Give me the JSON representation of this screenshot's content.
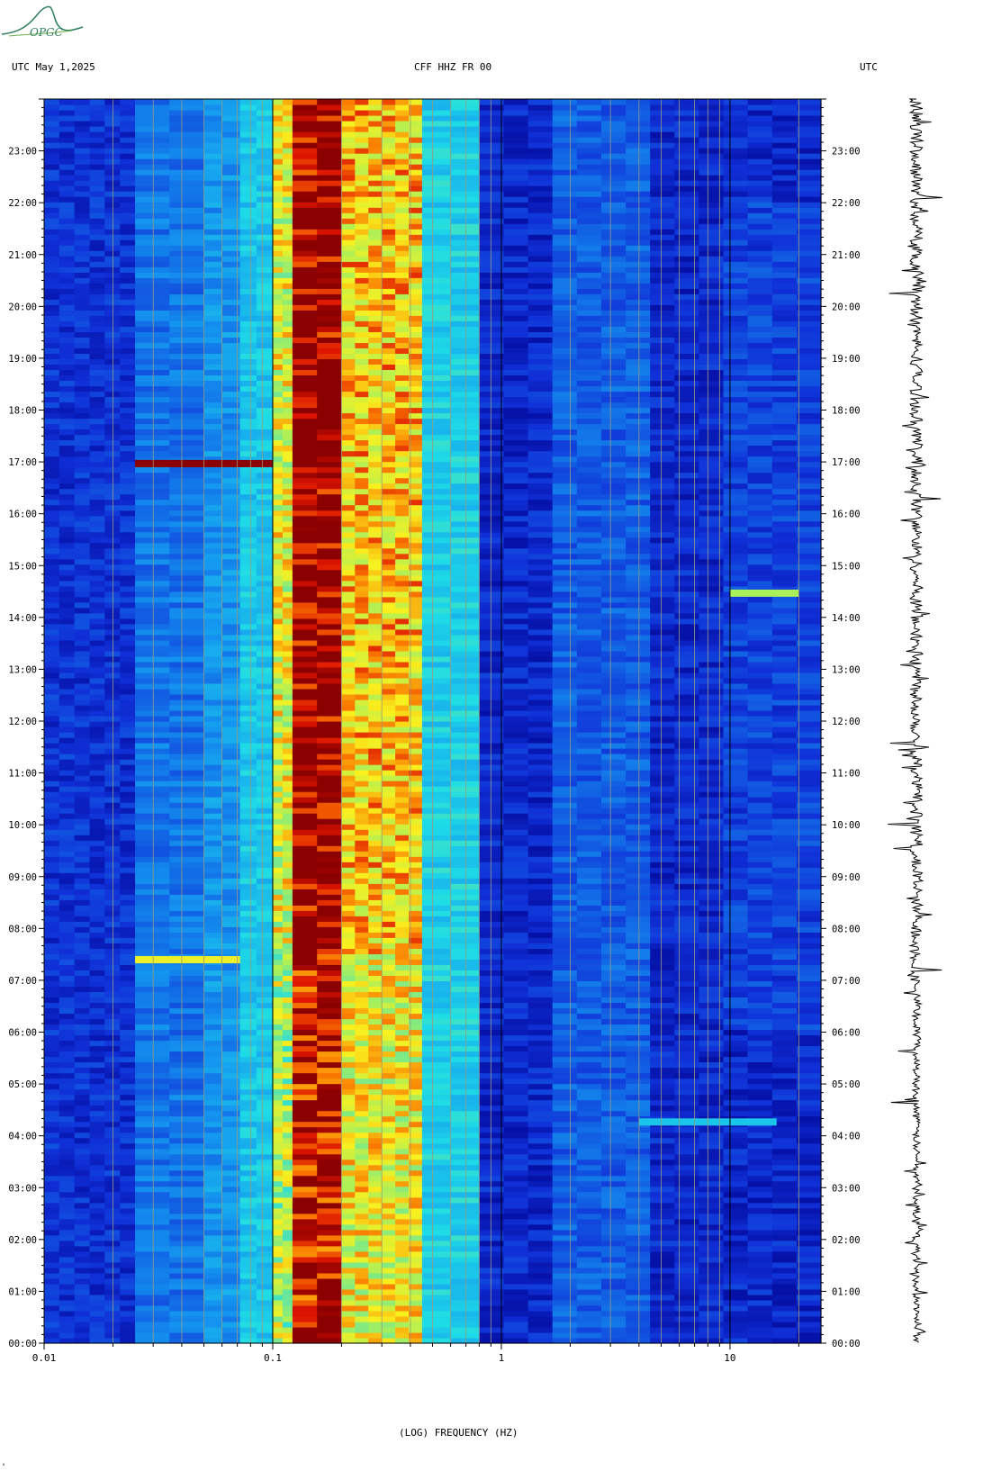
{
  "header": {
    "left": "UTC  May 1,2025",
    "center": "CFF HHZ FR 00",
    "right": "UTC"
  },
  "logo": {
    "text": "OPGC",
    "color": "#2e7d5b"
  },
  "colors": {
    "background_low": "#1030d8",
    "mid_cyan": "#20c8f0",
    "yellow": "#f8f020",
    "dark_red": "#8b0000"
  },
  "chart_data": [
    {
      "type": "heatmap",
      "title": "",
      "xlabel": "(LOG) FREQUENCY (HZ)",
      "ylabel": "",
      "x_scale": "log",
      "xlim": [
        0.01,
        25
      ],
      "x_ticks": [
        {
          "value": 0.01,
          "label": "0.01"
        },
        {
          "value": 0.1,
          "label": "0.1"
        },
        {
          "value": 1,
          "label": "1"
        },
        {
          "value": 10,
          "label": "10"
        }
      ],
      "ylim": [
        0,
        24
      ],
      "y_ticks": [
        {
          "value": 0,
          "label": "00:00"
        },
        {
          "value": 1,
          "label": "01:00"
        },
        {
          "value": 2,
          "label": "02:00"
        },
        {
          "value": 3,
          "label": "03:00"
        },
        {
          "value": 4,
          "label": "04:00"
        },
        {
          "value": 5,
          "label": "05:00"
        },
        {
          "value": 6,
          "label": "06:00"
        },
        {
          "value": 7,
          "label": "07:00"
        },
        {
          "value": 8,
          "label": "08:00"
        },
        {
          "value": 9,
          "label": "09:00"
        },
        {
          "value": 10,
          "label": "10:00"
        },
        {
          "value": 11,
          "label": "11:00"
        },
        {
          "value": 12,
          "label": "12:00"
        },
        {
          "value": 13,
          "label": "13:00"
        },
        {
          "value": 14,
          "label": "14:00"
        },
        {
          "value": 15,
          "label": "15:00"
        },
        {
          "value": 16,
          "label": "16:00"
        },
        {
          "value": 17,
          "label": "17:00"
        },
        {
          "value": 18,
          "label": "18:00"
        },
        {
          "value": 19,
          "label": "19:00"
        },
        {
          "value": 20,
          "label": "20:00"
        },
        {
          "value": 21,
          "label": "21:00"
        },
        {
          "value": 22,
          "label": "22:00"
        },
        {
          "value": 23,
          "label": "23:00"
        }
      ],
      "freq_bands": [
        {
          "f_min": 0.01,
          "f_max": 0.025,
          "level": 0.12
        },
        {
          "f_min": 0.025,
          "f_max": 0.05,
          "level": 0.24
        },
        {
          "f_min": 0.05,
          "f_max": 0.072,
          "level": 0.3
        },
        {
          "f_min": 0.072,
          "f_max": 0.1,
          "level": 0.4
        },
        {
          "f_min": 0.1,
          "f_max": 0.122,
          "level": 0.62
        },
        {
          "f_min": 0.122,
          "f_max": 0.2,
          "level": 0.95
        },
        {
          "f_min": 0.2,
          "f_max": 0.45,
          "level": 0.7
        },
        {
          "f_min": 0.45,
          "f_max": 0.8,
          "level": 0.42
        },
        {
          "f_min": 0.8,
          "f_max": 25,
          "level": 0.1
        }
      ],
      "events": [
        {
          "time": 16.95,
          "f_min": 0.025,
          "f_max": 0.1,
          "level": 1.0
        },
        {
          "time": 7.38,
          "f_min": 0.025,
          "f_max": 0.072,
          "level": 0.7
        },
        {
          "time": 14.45,
          "f_min": 10,
          "f_max": 20,
          "level": 0.6
        },
        {
          "time": 4.25,
          "f_min": 4,
          "f_max": 16,
          "level": 0.4
        }
      ],
      "grid": true
    },
    {
      "type": "line",
      "title": "",
      "ylim": [
        0,
        24
      ],
      "description_series": "seismogram trace"
    }
  ]
}
